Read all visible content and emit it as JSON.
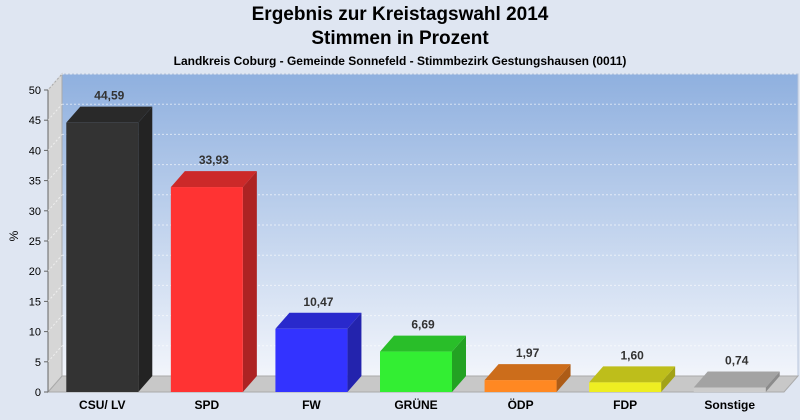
{
  "chart_data": {
    "type": "bar",
    "title": "Ergebnis zur Kreistagswahl 2014",
    "title2": "Stimmen in Prozent",
    "subtitle": "Landkreis Coburg - Gemeinde Sonnefeld - Stimmbezirk Gestungshausen (0011)",
    "ylabel": "%",
    "xlabel": "",
    "ylim": [
      0,
      50
    ],
    "yticks": [
      "0",
      "5",
      "10",
      "15",
      "20",
      "25",
      "30",
      "35",
      "40",
      "45",
      "50"
    ],
    "categories": [
      "CSU/ LV",
      "SPD",
      "FW",
      "GRÜNE",
      "ÖDP",
      "FDP",
      "Sonstige"
    ],
    "values": [
      44.59,
      33.93,
      10.47,
      6.69,
      1.97,
      1.6,
      0.74
    ],
    "value_labels": [
      "44,59",
      "33,93",
      "10,47",
      "6,69",
      "1,97",
      "1,60",
      "0,74"
    ],
    "colors": [
      "#333333",
      "#ff3333",
      "#3333ff",
      "#33ee33",
      "#ff8822",
      "#eeee22",
      "#cccccc"
    ]
  }
}
